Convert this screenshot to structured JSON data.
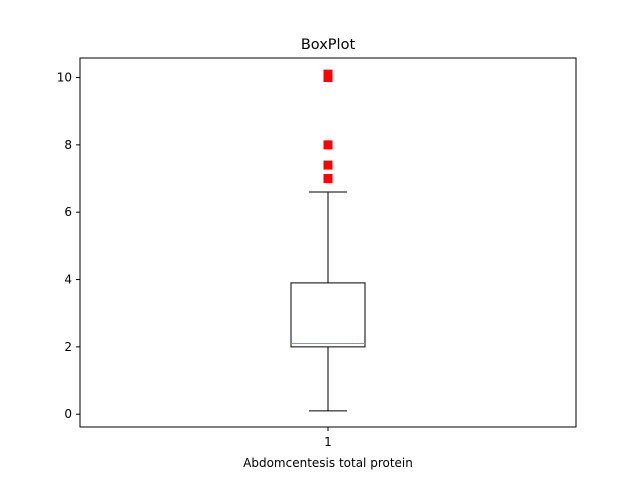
{
  "chart_data": {
    "type": "box",
    "title": "BoxPlot",
    "xlabel": "Abdomcentesis total protein",
    "ylabel": "",
    "categories": [
      "1"
    ],
    "ylim": [
      -0.38,
      10.58
    ],
    "yticks": [
      0,
      2,
      4,
      6,
      8,
      10
    ],
    "grid": false,
    "box": {
      "whisker_low": 0.1,
      "q1": 2.0,
      "median": 2.1,
      "q3": 3.9,
      "whisker_high": 6.6,
      "outliers": [
        7.0,
        7.0,
        7.4,
        8.0,
        10.0,
        10.1
      ]
    },
    "colors": {
      "box": "#000000",
      "median": "#ff7f0e",
      "outlier": "#ff0000"
    }
  }
}
